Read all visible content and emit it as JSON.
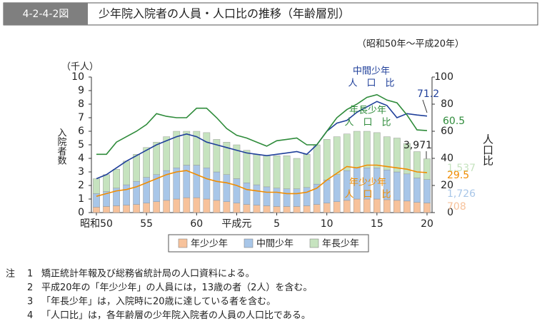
{
  "header": {
    "figure_number": "4-2-4-2図",
    "title": "少年院入院者の人員・人口比の推移（年齢層別）"
  },
  "chart_data": {
    "type": "bar",
    "stacked": true,
    "subtitle": "（昭和50年～平成20年）",
    "y_unit": "（千人）",
    "y_label": "入院者数",
    "y2_label": "人口比",
    "categories": [
      "昭和50",
      null,
      null,
      null,
      null,
      "55",
      null,
      null,
      null,
      null,
      "60",
      null,
      null,
      null,
      "平成元",
      null,
      null,
      null,
      "5",
      null,
      null,
      null,
      null,
      "10",
      null,
      null,
      null,
      null,
      "15",
      null,
      null,
      null,
      null,
      "20"
    ],
    "ylim": [
      0,
      10
    ],
    "yticks": [
      0,
      1,
      2,
      3,
      4,
      5,
      6,
      7,
      8,
      9,
      10
    ],
    "y2lim": [
      0,
      100
    ],
    "y2ticks": [
      0,
      20,
      40,
      60,
      80,
      100
    ],
    "total_label": "3,971",
    "series": [
      {
        "name": "年少少年",
        "type": "bar",
        "color": "#f7c29b",
        "values": [
          0.4,
          0.45,
          0.5,
          0.55,
          0.6,
          0.7,
          0.8,
          0.9,
          1.0,
          1.1,
          1.1,
          1.0,
          0.9,
          0.8,
          0.7,
          0.6,
          0.55,
          0.5,
          0.45,
          0.45,
          0.45,
          0.5,
          0.6,
          0.7,
          0.8,
          0.9,
          1.0,
          1.0,
          1.0,
          0.95,
          0.9,
          0.85,
          0.75,
          0.708
        ],
        "value_labels": [
          null,
          null,
          null,
          null,
          null,
          null,
          null,
          null,
          null,
          null,
          null,
          null,
          null,
          null,
          null,
          null,
          null,
          null,
          null,
          null,
          null,
          null,
          null,
          null,
          null,
          null,
          null,
          null,
          null,
          null,
          null,
          null,
          null,
          "708"
        ]
      },
      {
        "name": "中間少年",
        "type": "bar",
        "color": "#a8c6e8",
        "values": [
          1.0,
          1.1,
          1.3,
          1.5,
          1.7,
          1.9,
          2.0,
          2.2,
          2.3,
          2.4,
          2.4,
          2.3,
          2.1,
          2.0,
          1.8,
          1.6,
          1.5,
          1.4,
          1.35,
          1.3,
          1.3,
          1.35,
          1.5,
          1.7,
          2.0,
          2.2,
          2.3,
          2.3,
          2.3,
          2.2,
          2.1,
          2.0,
          1.8,
          1.726
        ],
        "value_labels": [
          null,
          null,
          null,
          null,
          null,
          null,
          null,
          null,
          null,
          null,
          null,
          null,
          null,
          null,
          null,
          null,
          null,
          null,
          null,
          null,
          null,
          null,
          null,
          null,
          null,
          null,
          null,
          null,
          null,
          null,
          null,
          null,
          null,
          "1,726"
        ]
      },
      {
        "name": "年長少年",
        "type": "bar",
        "color": "#c6e3bf",
        "values": [
          1.1,
          1.25,
          1.4,
          1.75,
          2.0,
          2.2,
          2.4,
          2.5,
          2.7,
          2.5,
          2.5,
          2.6,
          2.4,
          2.4,
          2.5,
          2.4,
          2.25,
          2.3,
          2.4,
          2.45,
          2.25,
          2.45,
          2.9,
          3.0,
          2.8,
          2.7,
          2.7,
          2.7,
          2.6,
          2.45,
          2.5,
          2.25,
          1.95,
          1.537
        ],
        "value_labels": [
          null,
          null,
          null,
          null,
          null,
          null,
          null,
          null,
          null,
          null,
          null,
          null,
          null,
          null,
          null,
          null,
          null,
          null,
          null,
          null,
          null,
          null,
          null,
          null,
          null,
          null,
          null,
          null,
          null,
          null,
          null,
          null,
          null,
          "1,537"
        ]
      },
      {
        "type": "line",
        "axis": "y2",
        "color": "#1f3f9a",
        "label_lines": [
          "中間少年",
          "人　口　比"
        ],
        "values": [
          25,
          28,
          33,
          38,
          42,
          46,
          50,
          53,
          56,
          58,
          56,
          52,
          50,
          48,
          46,
          44,
          43,
          42,
          43,
          44,
          45,
          43,
          50,
          60,
          66,
          68,
          74,
          78,
          82,
          79,
          70,
          73,
          72,
          71.2
        ],
        "value_labels": [
          null,
          null,
          null,
          null,
          null,
          null,
          null,
          null,
          null,
          null,
          null,
          null,
          null,
          null,
          null,
          null,
          null,
          null,
          null,
          null,
          null,
          null,
          null,
          null,
          null,
          null,
          null,
          null,
          null,
          null,
          null,
          null,
          null,
          "71.2"
        ]
      },
      {
        "type": "line",
        "axis": "y2",
        "color": "#2e8b3a",
        "label_lines": [
          "年長少年",
          "人　口　比"
        ],
        "values": [
          43,
          43,
          52,
          56,
          60,
          65,
          73,
          71,
          70,
          70,
          77,
          77,
          70,
          62,
          57,
          55,
          52,
          49,
          53,
          54,
          55,
          50,
          50,
          60,
          70,
          76,
          80,
          85,
          87,
          83,
          81,
          72,
          61,
          60.5
        ],
        "value_labels": [
          null,
          null,
          null,
          null,
          null,
          null,
          null,
          null,
          null,
          null,
          null,
          null,
          null,
          null,
          null,
          null,
          null,
          null,
          null,
          null,
          null,
          null,
          null,
          null,
          null,
          null,
          null,
          null,
          null,
          null,
          null,
          null,
          null,
          "60.5"
        ]
      },
      {
        "type": "line",
        "axis": "y2",
        "color": "#f08c00",
        "label_lines": [
          "年少少年",
          "人　口　比"
        ],
        "values": [
          12,
          14,
          16,
          17,
          19,
          22,
          25,
          28,
          30,
          31,
          28,
          25,
          23,
          22,
          20,
          17,
          16,
          15,
          15,
          14,
          14,
          15,
          18,
          24,
          29,
          34,
          33,
          35,
          35,
          34,
          33,
          32,
          30,
          29.5
        ],
        "value_labels": [
          null,
          null,
          null,
          null,
          null,
          null,
          null,
          null,
          null,
          null,
          null,
          null,
          null,
          null,
          null,
          null,
          null,
          null,
          null,
          null,
          null,
          null,
          null,
          null,
          null,
          null,
          null,
          null,
          null,
          null,
          null,
          null,
          null,
          "29.5"
        ]
      }
    ]
  },
  "notes": {
    "mark": "注",
    "items": [
      {
        "number": "1",
        "text": "矯正統計年報及び総務省統計局の人口資料による。"
      },
      {
        "number": "2",
        "text": "平成20年の「年少少年」の人員には，13歳の者（2人）を含む。"
      },
      {
        "number": "3",
        "text": "「年長少年」は，入院時に20歳に達している者を含む。"
      },
      {
        "number": "4",
        "text": "「人口比」は，各年齢層の少年院入院者の人員の人口比である。"
      }
    ]
  }
}
